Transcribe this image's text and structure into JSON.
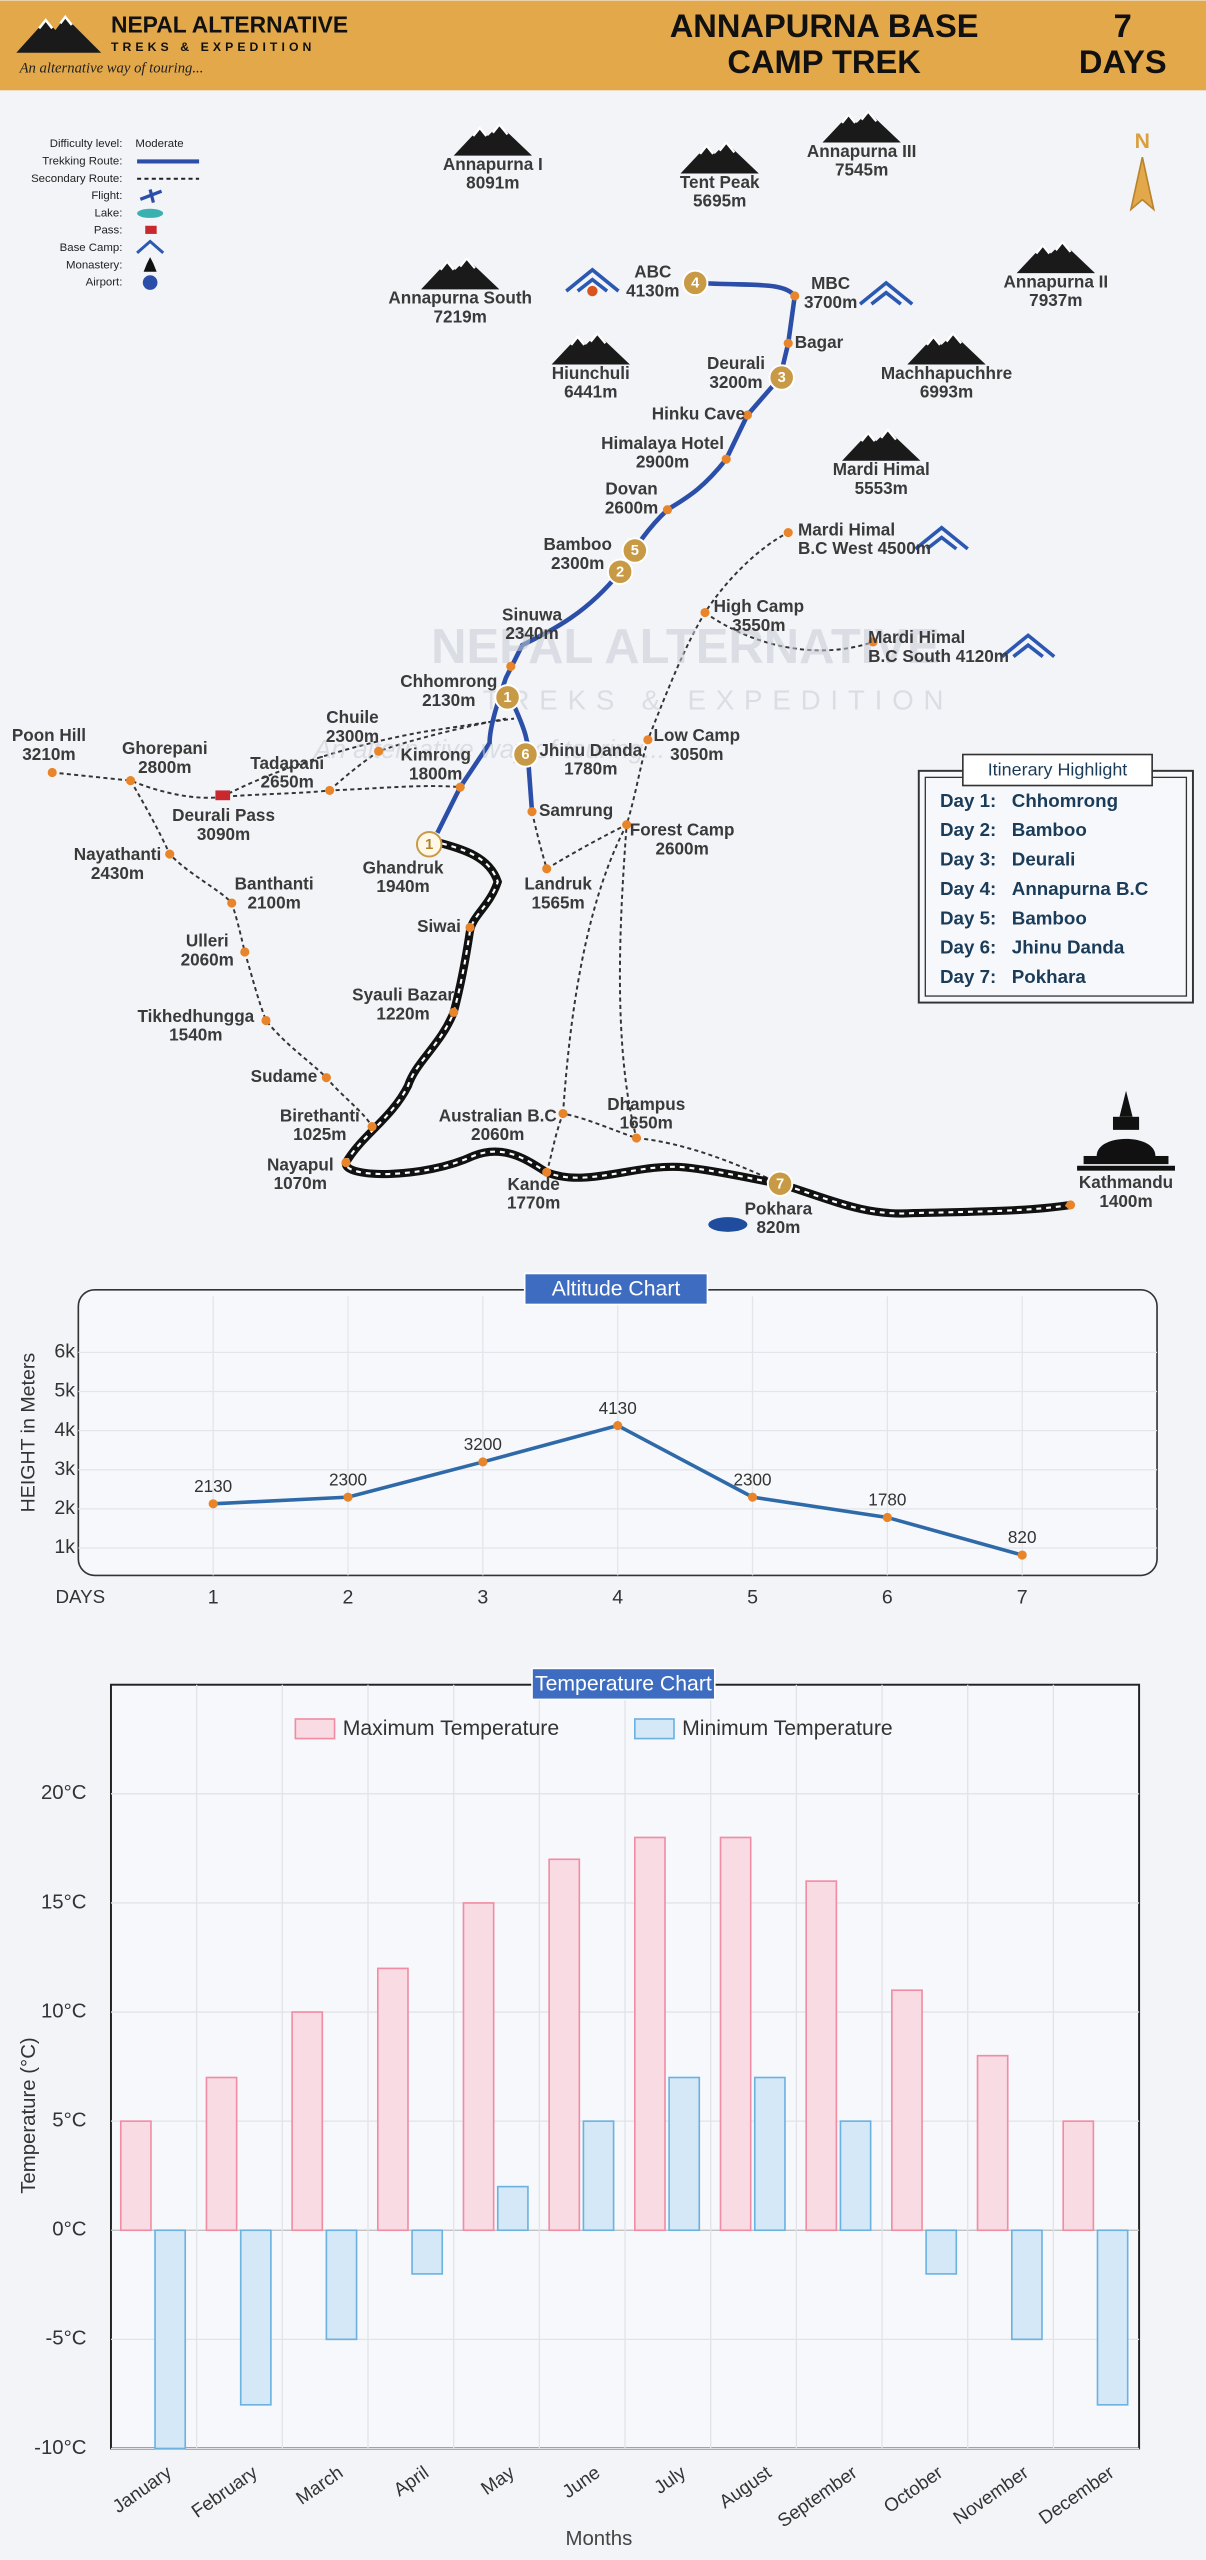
{
  "header": {
    "brand": "NEPAL ALTERNATIVE",
    "brand_sub": "TREKS & EXPEDITION",
    "tagline": "An alternative way of touring...",
    "title_lines": [
      "ANNAPURNA BASE",
      "CAMP TREK"
    ],
    "days_lines": [
      "7",
      "DAYS"
    ]
  },
  "legend": {
    "items": [
      {
        "label": "Difficulty level:",
        "value": "Moderate"
      },
      {
        "label": "Trekking Route:"
      },
      {
        "label": "Secondary Route:"
      },
      {
        "label": "Flight:"
      },
      {
        "label": "Lake:"
      },
      {
        "label": "Pass:"
      },
      {
        "label": "Base Camp:"
      },
      {
        "label": "Monastery:"
      },
      {
        "label": "Airport:"
      }
    ]
  },
  "compass": "N",
  "map": {
    "watermark": [
      "NEPAL ALTERNATIVE",
      "TREKS & EXPEDITION",
      "An alternative way of touring..."
    ],
    "peaks": [
      {
        "lines": [
          "Annapurna I",
          "8091m"
        ]
      },
      {
        "lines": [
          "Tent Peak",
          "5695m"
        ]
      },
      {
        "lines": [
          "Annapurna III",
          "7545m"
        ]
      },
      {
        "lines": [
          "Annapurna South",
          "7219m"
        ]
      },
      {
        "lines": [
          "Annapurna II",
          "7937m"
        ]
      },
      {
        "lines": [
          "Hiunchuli",
          "6441m"
        ]
      },
      {
        "lines": [
          "Machhapuchhre",
          "6993m"
        ]
      },
      {
        "lines": [
          "Mardi Himal",
          "5553m"
        ]
      }
    ],
    "places": [
      {
        "lines": [
          "ABC",
          "4130m"
        ]
      },
      {
        "lines": [
          "MBC",
          "3700m"
        ]
      },
      {
        "lines": [
          "Bagar"
        ]
      },
      {
        "lines": [
          "Deurali",
          "3200m"
        ]
      },
      {
        "lines": [
          "Hinku Cave"
        ]
      },
      {
        "lines": [
          "Himalaya Hotel",
          "2900m"
        ]
      },
      {
        "lines": [
          "Dovan",
          "2600m"
        ]
      },
      {
        "lines": [
          "Bamboo",
          "2300m"
        ]
      },
      {
        "lines": [
          "Sinuwa",
          "2340m"
        ]
      },
      {
        "lines": [
          "Chhomrong",
          "2130m"
        ]
      },
      {
        "lines": [
          "Jhinu Danda",
          "1780m"
        ]
      },
      {
        "lines": [
          "Kimrong",
          "1800m"
        ]
      },
      {
        "lines": [
          "Chuile",
          "2300m"
        ]
      },
      {
        "lines": [
          "Tadapani",
          "2650m"
        ]
      },
      {
        "lines": [
          "Ghorepani",
          "2800m"
        ]
      },
      {
        "lines": [
          "Poon Hill",
          "3210m"
        ]
      },
      {
        "lines": [
          "Deurali Pass",
          "3090m"
        ]
      },
      {
        "lines": [
          "Nayathanti",
          "2430m"
        ]
      },
      {
        "lines": [
          "Banthanti",
          "2100m"
        ]
      },
      {
        "lines": [
          "Ulleri",
          "2060m"
        ]
      },
      {
        "lines": [
          "Tikhedhungga",
          "1540m"
        ]
      },
      {
        "lines": [
          "Sudame"
        ]
      },
      {
        "lines": [
          "Birethanti",
          "1025m"
        ]
      },
      {
        "lines": [
          "Nayapul",
          "1070m"
        ]
      },
      {
        "lines": [
          "Ghandruk",
          "1940m"
        ]
      },
      {
        "lines": [
          "Siwai"
        ]
      },
      {
        "lines": [
          "Syauli Bazar",
          "1220m"
        ]
      },
      {
        "lines": [
          "Samrung"
        ]
      },
      {
        "lines": [
          "Landruk",
          "1565m"
        ]
      },
      {
        "lines": [
          "Forest Camp",
          "2600m"
        ]
      },
      {
        "lines": [
          "Low Camp",
          "3050m"
        ]
      },
      {
        "lines": [
          "High Camp",
          "3550m"
        ]
      },
      {
        "lines": [
          "Mardi Himal",
          "B.C West 4500m"
        ]
      },
      {
        "lines": [
          "Mardi Himal",
          "B.C South 4120m"
        ]
      },
      {
        "lines": [
          "Australian B.C",
          "2060m"
        ]
      },
      {
        "lines": [
          "Dhampus",
          "1650m"
        ]
      },
      {
        "lines": [
          "Kande",
          "1770m"
        ]
      },
      {
        "lines": [
          "Pokhara",
          "820m"
        ]
      },
      {
        "lines": [
          "Kathmandu",
          "1400m"
        ]
      }
    ],
    "day_markers": [
      "1",
      "2",
      "3",
      "4",
      "5",
      "6",
      "7",
      "1"
    ]
  },
  "itinerary": {
    "title": "Itinerary Highlight",
    "rows": [
      [
        "Day 1:",
        "Chhomrong"
      ],
      [
        "Day 2:",
        "Bamboo"
      ],
      [
        "Day 3:",
        "Deurali"
      ],
      [
        "Day 4:",
        "Annapurna B.C"
      ],
      [
        "Day 5:",
        "Bamboo"
      ],
      [
        "Day 6:",
        "Jhinu Danda"
      ],
      [
        "Day 7:",
        "Pokhara"
      ]
    ]
  },
  "chart_data": [
    {
      "type": "line",
      "title": "Altitude Chart",
      "y_label": "HEIGHT in Meters",
      "x_label": "DAYS",
      "x": [
        1,
        2,
        3,
        4,
        5,
        6,
        7
      ],
      "values": [
        2130,
        2300,
        3200,
        4130,
        2300,
        1780,
        820
      ],
      "color": "#2f6aa8",
      "marker_color": "#e8852a",
      "xlim": [
        0,
        8
      ],
      "xticks": [
        1,
        2,
        3,
        4,
        5,
        6,
        7
      ],
      "ylim": [
        300,
        7600
      ],
      "yticks": [
        {
          "value": 1000,
          "label": "1k"
        },
        {
          "value": 2000,
          "label": "2k"
        },
        {
          "value": 3000,
          "label": "3k"
        },
        {
          "value": 4000,
          "label": "4k"
        },
        {
          "value": 5000,
          "label": "5k"
        },
        {
          "value": 6000,
          "label": "6k"
        }
      ],
      "grid": true
    },
    {
      "type": "bar",
      "title": "Temperature Chart",
      "y_label": "Temperature (°C)",
      "x_label": "Months",
      "categories": [
        "January",
        "February",
        "March",
        "April",
        "May",
        "June",
        "July",
        "August",
        "September",
        "October",
        "November",
        "December"
      ],
      "series": [
        {
          "name": "Maximum Temperature",
          "color": "#f9dbe3",
          "edge": "#f08da5",
          "values": [
            5,
            7,
            10,
            12,
            15,
            17,
            18,
            18,
            16,
            11,
            8,
            5
          ]
        },
        {
          "name": "Minimum Temperature",
          "color": "#d4e8f7",
          "edge": "#6cb2e0",
          "values": [
            -10,
            -8,
            -5,
            -2,
            2,
            5,
            7,
            7,
            5,
            -2,
            -5,
            -8
          ]
        }
      ],
      "ylim": [
        -10,
        25
      ],
      "yticks": [
        {
          "value": -10,
          "label": "-10°C"
        },
        {
          "value": -5,
          "label": "-5°C"
        },
        {
          "value": 0,
          "label": "0°C"
        },
        {
          "value": 5,
          "label": "5°C"
        },
        {
          "value": 10,
          "label": "10°C"
        },
        {
          "value": 15,
          "label": "15°C"
        },
        {
          "value": 20,
          "label": "20°C"
        }
      ],
      "grid": true,
      "legend": "top"
    }
  ]
}
